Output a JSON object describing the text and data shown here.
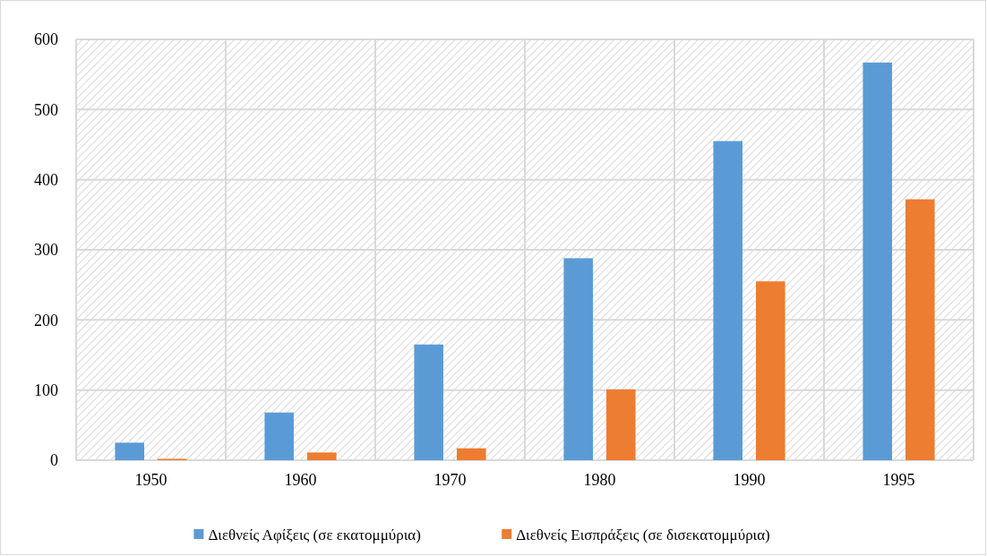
{
  "chart_data": {
    "type": "bar",
    "categories": [
      "1950",
      "1960",
      "1970",
      "1980",
      "1990",
      "1995"
    ],
    "series": [
      {
        "name": "Διεθνείς Αφίξεις (σε εκατομμύρια)",
        "color": "#5b9bd5",
        "values": [
          25,
          68,
          165,
          288,
          455,
          567
        ]
      },
      {
        "name": "Διεθνείς Εισπράξεις (σε δισεκατομμύρια)",
        "color": "#ed7d31",
        "values": [
          2,
          11,
          17,
          101,
          255,
          372
        ]
      }
    ],
    "ylim": [
      0,
      600
    ],
    "yticks": [
      0,
      100,
      200,
      300,
      400,
      500,
      600
    ],
    "grid": true,
    "legend": "bottom"
  }
}
